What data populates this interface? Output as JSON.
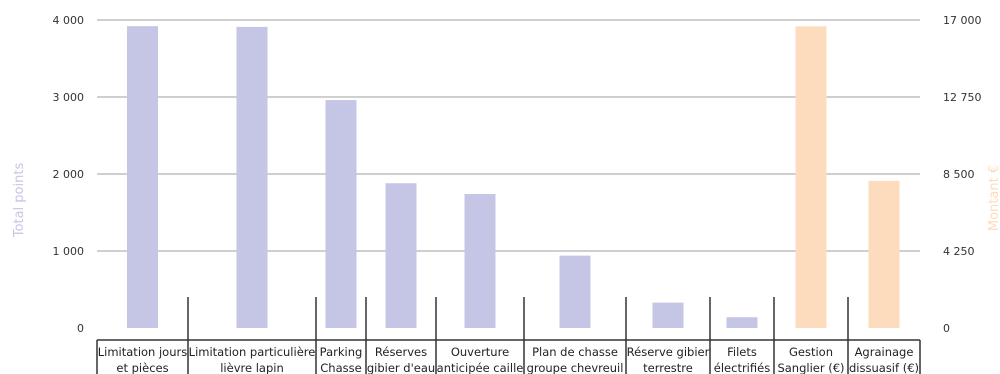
{
  "chart_data": {
    "type": "bar",
    "y_left": {
      "label": "Total points",
      "range": [
        0,
        4000
      ],
      "ticks": [
        "0",
        "1 000",
        "2 000",
        "3 000",
        "4 000"
      ],
      "color": "#c5c6e6"
    },
    "y_right": {
      "label": "Montant €",
      "range": [
        0,
        17000
      ],
      "ticks": [
        "0",
        "4 250",
        "8 500",
        "12 750",
        "17 000"
      ],
      "color": "#fddcbd"
    },
    "categories": [
      [
        "Limitation jours",
        "et pièces"
      ],
      [
        "Limitation particulière",
        "lièvre lapin"
      ],
      [
        "Parking",
        "Chasse"
      ],
      [
        "Réserves",
        "gibier d'eau"
      ],
      [
        "Ouverture",
        "anticipée caille"
      ],
      [
        "Plan de chasse",
        "groupe chevreuil"
      ],
      [
        "Réserve gibier",
        "terrestre"
      ],
      [
        "Filets",
        "électrifiés"
      ],
      [
        "Gestion",
        "Sanglier (€)"
      ],
      [
        "Agrainage",
        "dissuasif (€)"
      ]
    ],
    "series": [
      {
        "axis": "left",
        "color": "#c5c6e6",
        "values": [
          3920,
          3910,
          2960,
          1880,
          1740,
          940,
          330,
          140,
          null,
          null
        ]
      },
      {
        "axis": "right",
        "color": "#fddcbd",
        "values": [
          null,
          null,
          null,
          null,
          null,
          null,
          null,
          null,
          16650,
          8120
        ]
      }
    ],
    "grid": true
  }
}
